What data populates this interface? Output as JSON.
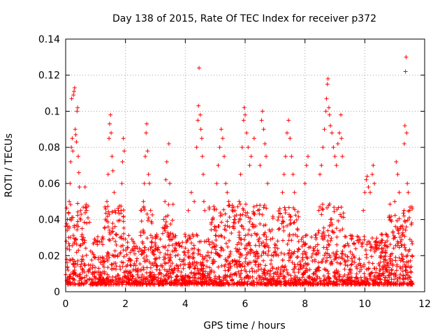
{
  "chart_data": {
    "type": "scatter",
    "title": "Day 138 of 2015, Rate Of TEC Index for receiver p372",
    "xlabel": "GPS time / hours",
    "ylabel": "ROTI / TECUs",
    "xlim": [
      0,
      12
    ],
    "ylim": [
      0,
      0.14
    ],
    "xticks": [
      0,
      2,
      4,
      6,
      8,
      10,
      12
    ],
    "xtick_labels": [
      "0",
      "2",
      "4",
      "6",
      "8",
      "10",
      "12"
    ],
    "yticks": [
      0,
      0.02,
      0.04,
      0.06,
      0.08,
      0.1,
      0.12,
      0.14
    ],
    "ytick_labels": [
      "0",
      "0.02",
      "0.04",
      "0.06",
      "0.08",
      "0.1",
      "0.12",
      "0.14"
    ],
    "grid": true,
    "marker": "+",
    "color": "#ff0000",
    "series": [
      {
        "name": "ROTI",
        "points": [
          [
            0.02,
            0.028
          ],
          [
            0.04,
            0.018
          ],
          [
            0.05,
            0.024
          ],
          [
            0.08,
            0.012
          ],
          [
            0.1,
            0.03
          ],
          [
            0.12,
            0.05
          ],
          [
            0.15,
            0.06
          ],
          [
            0.17,
            0.072
          ],
          [
            0.19,
            0.08
          ],
          [
            0.2,
            0.107
          ],
          [
            0.22,
            0.085
          ],
          [
            0.24,
            0.078
          ],
          [
            0.26,
            0.109
          ],
          [
            0.28,
            0.111
          ],
          [
            0.3,
            0.113
          ],
          [
            0.32,
            0.09
          ],
          [
            0.34,
            0.087
          ],
          [
            0.36,
            0.083
          ],
          [
            0.38,
            0.1
          ],
          [
            0.4,
            0.102
          ],
          [
            0.42,
            0.075
          ],
          [
            0.44,
            0.066
          ],
          [
            0.46,
            0.058
          ],
          [
            0.5,
            0.045
          ],
          [
            0.55,
            0.035
          ],
          [
            0.6,
            0.03
          ],
          [
            0.65,
            0.058
          ],
          [
            0.7,
            0.038
          ],
          [
            1.38,
            0.05
          ],
          [
            1.42,
            0.065
          ],
          [
            1.45,
            0.085
          ],
          [
            1.47,
            0.093
          ],
          [
            1.5,
            0.098
          ],
          [
            1.52,
            0.088
          ],
          [
            1.55,
            0.075
          ],
          [
            1.58,
            0.067
          ],
          [
            1.62,
            0.055
          ],
          [
            1.65,
            0.045
          ],
          [
            1.82,
            0.03
          ],
          [
            1.85,
            0.045
          ],
          [
            1.88,
            0.06
          ],
          [
            1.9,
            0.072
          ],
          [
            1.93,
            0.085
          ],
          [
            1.96,
            0.078
          ],
          [
            2.6,
            0.05
          ],
          [
            2.63,
            0.06
          ],
          [
            2.66,
            0.075
          ],
          [
            2.69,
            0.088
          ],
          [
            2.71,
            0.093
          ],
          [
            2.74,
            0.078
          ],
          [
            2.77,
            0.065
          ],
          [
            2.8,
            0.06
          ],
          [
            2.84,
            0.045
          ],
          [
            3.3,
            0.035
          ],
          [
            3.32,
            0.05
          ],
          [
            3.35,
            0.062
          ],
          [
            3.38,
            0.072
          ],
          [
            3.45,
            0.082
          ],
          [
            3.48,
            0.06
          ],
          [
            4.1,
            0.045
          ],
          [
            4.2,
            0.055
          ],
          [
            4.3,
            0.05
          ],
          [
            4.38,
            0.08
          ],
          [
            4.42,
            0.095
          ],
          [
            4.44,
            0.103
          ],
          [
            4.46,
            0.124
          ],
          [
            4.5,
            0.098
          ],
          [
            4.52,
            0.09
          ],
          [
            4.55,
            0.085
          ],
          [
            4.57,
            0.075
          ],
          [
            4.6,
            0.065
          ],
          [
            4.62,
            0.05
          ],
          [
            4.65,
            0.045
          ],
          [
            5.05,
            0.06
          ],
          [
            5.1,
            0.07
          ],
          [
            5.15,
            0.08
          ],
          [
            5.2,
            0.09
          ],
          [
            5.25,
            0.085
          ],
          [
            5.3,
            0.075
          ],
          [
            5.35,
            0.06
          ],
          [
            5.4,
            0.055
          ],
          [
            5.45,
            0.05
          ],
          [
            5.8,
            0.05
          ],
          [
            5.85,
            0.065
          ],
          [
            5.9,
            0.08
          ],
          [
            5.95,
            0.095
          ],
          [
            5.97,
            0.102
          ],
          [
            6.0,
            0.098
          ],
          [
            6.05,
            0.088
          ],
          [
            6.1,
            0.08
          ],
          [
            6.15,
            0.07
          ],
          [
            6.2,
            0.075
          ],
          [
            6.3,
            0.085
          ],
          [
            6.5,
            0.07
          ],
          [
            6.55,
            0.095
          ],
          [
            6.58,
            0.1
          ],
          [
            6.62,
            0.09
          ],
          [
            6.66,
            0.082
          ],
          [
            6.7,
            0.075
          ],
          [
            6.75,
            0.06
          ],
          [
            7.25,
            0.055
          ],
          [
            7.3,
            0.065
          ],
          [
            7.35,
            0.075
          ],
          [
            7.4,
            0.088
          ],
          [
            7.45,
            0.095
          ],
          [
            7.5,
            0.085
          ],
          [
            7.55,
            0.075
          ],
          [
            7.6,
            0.065
          ],
          [
            7.65,
            0.055
          ],
          [
            8.0,
            0.06
          ],
          [
            8.05,
            0.07
          ],
          [
            8.1,
            0.075
          ],
          [
            8.5,
            0.065
          ],
          [
            8.55,
            0.07
          ],
          [
            8.6,
            0.08
          ],
          [
            8.65,
            0.09
          ],
          [
            8.7,
            0.1
          ],
          [
            8.72,
            0.107
          ],
          [
            8.75,
            0.115
          ],
          [
            8.77,
            0.118
          ],
          [
            8.8,
            0.102
          ],
          [
            8.82,
            0.098
          ],
          [
            8.85,
            0.092
          ],
          [
            8.9,
            0.088
          ],
          [
            8.95,
            0.08
          ],
          [
            9.0,
            0.075
          ],
          [
            9.05,
            0.07
          ],
          [
            9.1,
            0.082
          ],
          [
            9.15,
            0.088
          ],
          [
            9.2,
            0.098
          ],
          [
            9.22,
            0.085
          ],
          [
            9.25,
            0.075
          ],
          [
            9.95,
            0.045
          ],
          [
            10.0,
            0.055
          ],
          [
            10.05,
            0.062
          ],
          [
            10.08,
            0.064
          ],
          [
            10.12,
            0.058
          ],
          [
            10.18,
            0.055
          ],
          [
            10.25,
            0.065
          ],
          [
            10.28,
            0.07
          ],
          [
            10.32,
            0.06
          ],
          [
            11.0,
            0.05
          ],
          [
            11.05,
            0.072
          ],
          [
            11.1,
            0.065
          ],
          [
            11.15,
            0.055
          ],
          [
            11.32,
            0.082
          ],
          [
            11.34,
            0.092
          ],
          [
            11.36,
            0.122
          ],
          [
            11.38,
            0.13
          ],
          [
            11.4,
            0.088
          ],
          [
            11.42,
            0.06
          ],
          [
            11.45,
            0.055
          ],
          [
            11.5,
            0.045
          ]
        ]
      }
    ]
  }
}
